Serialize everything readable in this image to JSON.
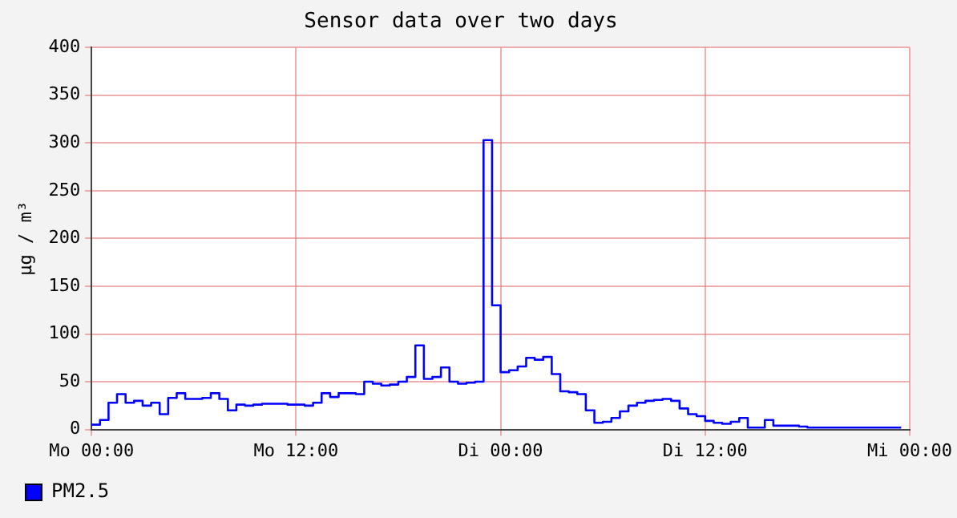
{
  "chart_data": {
    "type": "step",
    "title": "Sensor data over two days",
    "ylabel": "µg / m³",
    "categories": [
      "Mo 00:00",
      null,
      null,
      null,
      null,
      null,
      null,
      null,
      null,
      null,
      null,
      null,
      null,
      null,
      null,
      null,
      null,
      null,
      null,
      null,
      null,
      null,
      null,
      null,
      "Mo 12:00",
      null,
      null,
      null,
      null,
      null,
      null,
      null,
      null,
      null,
      null,
      null,
      null,
      null,
      null,
      null,
      null,
      null,
      null,
      null,
      null,
      null,
      null,
      null,
      "Di 00:00",
      null,
      null,
      null,
      null,
      null,
      null,
      null,
      null,
      null,
      null,
      null,
      null,
      null,
      null,
      null,
      null,
      null,
      null,
      null,
      null,
      null,
      null,
      null,
      "Di 12:00",
      null,
      null,
      null,
      null,
      null,
      null,
      null,
      null,
      null,
      null,
      null,
      null,
      null,
      null,
      null,
      null,
      null,
      null,
      null,
      null,
      null,
      null,
      null,
      "Mi 00:00"
    ],
    "ylim": [
      0,
      400
    ],
    "yticks": [
      0,
      50,
      100,
      150,
      200,
      250,
      300,
      350,
      400
    ],
    "grid": true,
    "legend": "bottom left",
    "marker": "none",
    "line_style": "solid",
    "series": [
      {
        "name": "PM2.5",
        "color": "#0000ff",
        "values": [
          5,
          10,
          28,
          37,
          28,
          30,
          25,
          28,
          16,
          33,
          38,
          32,
          32,
          33,
          38,
          32,
          20,
          26,
          25,
          26,
          27,
          27,
          27,
          26,
          26,
          25,
          28,
          38,
          34,
          38,
          38,
          37,
          50,
          48,
          46,
          47,
          50,
          55,
          88,
          53,
          55,
          65,
          50,
          48,
          49,
          50,
          303,
          130,
          60,
          62,
          66,
          75,
          73,
          76,
          58,
          40,
          39,
          37,
          20,
          7,
          8,
          12,
          19,
          25,
          28,
          30,
          31,
          32,
          30,
          22,
          16,
          14,
          9,
          7,
          6,
          8,
          12,
          2,
          2,
          10,
          4,
          4,
          4,
          3,
          2,
          2,
          2,
          2,
          2,
          2,
          2,
          2,
          2,
          2,
          2,
          2,
          null
        ]
      }
    ]
  }
}
